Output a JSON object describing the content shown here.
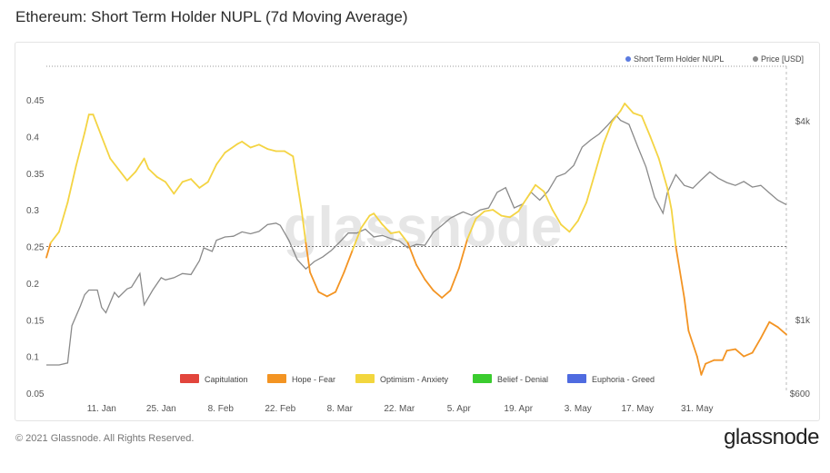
{
  "page": {
    "title": "Ethereum: Short Term Holder NUPL (7d Moving Average)",
    "copyright": "© 2021 Glassnode. All Rights Reserved.",
    "logo": "glassnode",
    "watermark": "glassnode"
  },
  "chart_data": {
    "type": "line",
    "title": "Ethereum: Short Term Holder NUPL (7d Moving Average)",
    "x_labels": [
      "11. Jan",
      "25. Jan",
      "8. Feb",
      "22. Feb",
      "8. Mar",
      "22. Mar",
      "5. Apr",
      "19. Apr",
      "3. May",
      "17. May",
      "31. May"
    ],
    "y_left": {
      "ticks": [
        0.05,
        0.1,
        0.15,
        0.2,
        0.25,
        0.3,
        0.35,
        0.4,
        0.45
      ],
      "range": [
        0.05,
        0.45
      ]
    },
    "y_right": {
      "ticks": [
        "$600",
        "$1k",
        "$4k"
      ],
      "scale": "log"
    },
    "reference_line": 0.25,
    "legend_top": [
      {
        "name": "Short Term Holder NUPL",
        "color": "#5b7be0"
      },
      {
        "name": "Price [USD]",
        "color": "#888888"
      }
    ],
    "legend_bottom": [
      {
        "name": "Capitulation",
        "color": "#e2453c"
      },
      {
        "name": "Hope - Fear",
        "color": "#f39423"
      },
      {
        "name": "Optimism - Anxiety",
        "color": "#f2d63e"
      },
      {
        "name": "Belief - Denial",
        "color": "#3bcc2f"
      },
      {
        "name": "Euphoria - Greed",
        "color": "#4f6be0"
      }
    ],
    "zone_colors": {
      "fear": "#f39423",
      "optimism": "#f4d443"
    },
    "series": [
      {
        "name": "Short Term Holder NUPL",
        "points": [
          [
            "2020-12-29",
            0.235
          ],
          [
            "2020-12-30",
            0.255
          ],
          [
            "2021-01-01",
            0.27
          ],
          [
            "2021-01-03",
            0.31
          ],
          [
            "2021-01-05",
            0.36
          ],
          [
            "2021-01-07",
            0.405
          ],
          [
            "2021-01-08",
            0.43
          ],
          [
            "2021-01-09",
            0.43
          ],
          [
            "2021-01-11",
            0.4
          ],
          [
            "2021-01-13",
            0.37
          ],
          [
            "2021-01-15",
            0.355
          ],
          [
            "2021-01-17",
            0.34
          ],
          [
            "2021-01-19",
            0.352
          ],
          [
            "2021-01-21",
            0.37
          ],
          [
            "2021-01-22",
            0.356
          ],
          [
            "2021-01-24",
            0.345
          ],
          [
            "2021-01-26",
            0.338
          ],
          [
            "2021-01-28",
            0.322
          ],
          [
            "2021-01-30",
            0.338
          ],
          [
            "2021-02-01",
            0.342
          ],
          [
            "2021-02-03",
            0.33
          ],
          [
            "2021-02-05",
            0.338
          ],
          [
            "2021-02-07",
            0.362
          ],
          [
            "2021-02-09",
            0.378
          ],
          [
            "2021-02-12",
            0.39
          ],
          [
            "2021-02-13",
            0.393
          ],
          [
            "2021-02-15",
            0.385
          ],
          [
            "2021-02-17",
            0.389
          ],
          [
            "2021-02-19",
            0.383
          ],
          [
            "2021-02-21",
            0.38
          ],
          [
            "2021-02-23",
            0.38
          ],
          [
            "2021-02-25",
            0.373
          ],
          [
            "2021-02-27",
            0.3
          ],
          [
            "2021-02-28",
            0.255
          ],
          [
            "2021-03-01",
            0.215
          ],
          [
            "2021-03-03",
            0.188
          ],
          [
            "2021-03-05",
            0.182
          ],
          [
            "2021-03-07",
            0.188
          ],
          [
            "2021-03-09",
            0.215
          ],
          [
            "2021-03-11",
            0.245
          ],
          [
            "2021-03-13",
            0.275
          ],
          [
            "2021-03-15",
            0.292
          ],
          [
            "2021-03-16",
            0.295
          ],
          [
            "2021-03-18",
            0.28
          ],
          [
            "2021-03-20",
            0.268
          ],
          [
            "2021-03-22",
            0.27
          ],
          [
            "2021-03-24",
            0.255
          ],
          [
            "2021-03-26",
            0.225
          ],
          [
            "2021-03-28",
            0.205
          ],
          [
            "2021-03-30",
            0.19
          ],
          [
            "2021-04-01",
            0.18
          ],
          [
            "2021-04-03",
            0.19
          ],
          [
            "2021-04-05",
            0.22
          ],
          [
            "2021-04-07",
            0.26
          ],
          [
            "2021-04-09",
            0.288
          ],
          [
            "2021-04-11",
            0.298
          ],
          [
            "2021-04-13",
            0.3
          ],
          [
            "2021-04-15",
            0.292
          ],
          [
            "2021-04-17",
            0.29
          ],
          [
            "2021-04-19",
            0.298
          ],
          [
            "2021-04-21",
            0.316
          ],
          [
            "2021-04-23",
            0.334
          ],
          [
            "2021-04-25",
            0.325
          ],
          [
            "2021-04-27",
            0.3
          ],
          [
            "2021-04-29",
            0.28
          ],
          [
            "2021-05-01",
            0.27
          ],
          [
            "2021-05-03",
            0.285
          ],
          [
            "2021-05-05",
            0.31
          ],
          [
            "2021-05-07",
            0.35
          ],
          [
            "2021-05-09",
            0.39
          ],
          [
            "2021-05-11",
            0.42
          ],
          [
            "2021-05-13",
            0.435
          ],
          [
            "2021-05-14",
            0.445
          ],
          [
            "2021-05-16",
            0.432
          ],
          [
            "2021-05-18",
            0.428
          ],
          [
            "2021-05-20",
            0.4
          ],
          [
            "2021-05-22",
            0.37
          ],
          [
            "2021-05-24",
            0.33
          ],
          [
            "2021-05-25",
            0.3
          ],
          [
            "2021-05-26",
            0.25
          ],
          [
            "2021-05-28",
            0.18
          ],
          [
            "2021-05-29",
            0.135
          ],
          [
            "2021-05-31",
            0.1
          ],
          [
            "2021-06-01",
            0.075
          ],
          [
            "2021-06-02",
            0.09
          ],
          [
            "2021-06-04",
            0.095
          ],
          [
            "2021-06-06",
            0.095
          ],
          [
            "2021-06-07",
            0.108
          ],
          [
            "2021-06-09",
            0.11
          ],
          [
            "2021-06-11",
            0.1
          ],
          [
            "2021-06-13",
            0.105
          ],
          [
            "2021-06-15",
            0.125
          ],
          [
            "2021-06-17",
            0.147
          ],
          [
            "2021-06-19",
            0.14
          ],
          [
            "2021-06-21",
            0.13
          ]
        ]
      },
      {
        "name": "Price [USD]",
        "color": "#8a8a8a",
        "points": [
          [
            "2020-12-29",
            730
          ],
          [
            "2021-01-01",
            730
          ],
          [
            "2021-01-03",
            740
          ],
          [
            "2021-01-04",
            960
          ],
          [
            "2021-01-06",
            1100
          ],
          [
            "2021-01-07",
            1190
          ],
          [
            "2021-01-08",
            1230
          ],
          [
            "2021-01-10",
            1230
          ],
          [
            "2021-01-11",
            1090
          ],
          [
            "2021-01-12",
            1050
          ],
          [
            "2021-01-14",
            1210
          ],
          [
            "2021-01-15",
            1170
          ],
          [
            "2021-01-17",
            1240
          ],
          [
            "2021-01-18",
            1255
          ],
          [
            "2021-01-20",
            1380
          ],
          [
            "2021-01-21",
            1110
          ],
          [
            "2021-01-23",
            1230
          ],
          [
            "2021-01-25",
            1340
          ],
          [
            "2021-01-26",
            1320
          ],
          [
            "2021-01-28",
            1340
          ],
          [
            "2021-01-30",
            1380
          ],
          [
            "2021-02-01",
            1370
          ],
          [
            "2021-02-03",
            1510
          ],
          [
            "2021-02-04",
            1650
          ],
          [
            "2021-02-06",
            1610
          ],
          [
            "2021-02-07",
            1740
          ],
          [
            "2021-02-09",
            1780
          ],
          [
            "2021-02-11",
            1790
          ],
          [
            "2021-02-13",
            1845
          ],
          [
            "2021-02-15",
            1820
          ],
          [
            "2021-02-17",
            1850
          ],
          [
            "2021-02-19",
            1940
          ],
          [
            "2021-02-21",
            1960
          ],
          [
            "2021-02-22",
            1930
          ],
          [
            "2021-02-24",
            1740
          ],
          [
            "2021-02-26",
            1520
          ],
          [
            "2021-02-28",
            1425
          ],
          [
            "2021-03-02",
            1500
          ],
          [
            "2021-03-04",
            1550
          ],
          [
            "2021-03-06",
            1620
          ],
          [
            "2021-03-08",
            1720
          ],
          [
            "2021-03-10",
            1830
          ],
          [
            "2021-03-12",
            1830
          ],
          [
            "2021-03-14",
            1880
          ],
          [
            "2021-03-16",
            1780
          ],
          [
            "2021-03-18",
            1800
          ],
          [
            "2021-03-20",
            1760
          ],
          [
            "2021-03-22",
            1730
          ],
          [
            "2021-03-24",
            1650
          ],
          [
            "2021-03-26",
            1690
          ],
          [
            "2021-03-28",
            1680
          ],
          [
            "2021-03-30",
            1840
          ],
          [
            "2021-04-01",
            1930
          ],
          [
            "2021-04-03",
            2030
          ],
          [
            "2021-04-05",
            2090
          ],
          [
            "2021-04-06",
            2120
          ],
          [
            "2021-04-08",
            2070
          ],
          [
            "2021-04-10",
            2150
          ],
          [
            "2021-04-12",
            2180
          ],
          [
            "2021-04-14",
            2430
          ],
          [
            "2021-04-16",
            2510
          ],
          [
            "2021-04-18",
            2180
          ],
          [
            "2021-04-20",
            2240
          ],
          [
            "2021-04-22",
            2430
          ],
          [
            "2021-04-24",
            2300
          ],
          [
            "2021-04-26",
            2450
          ],
          [
            "2021-04-28",
            2710
          ],
          [
            "2021-04-30",
            2770
          ],
          [
            "2021-05-02",
            2930
          ],
          [
            "2021-05-04",
            3330
          ],
          [
            "2021-05-06",
            3500
          ],
          [
            "2021-05-08",
            3650
          ],
          [
            "2021-05-10",
            3880
          ],
          [
            "2021-05-12",
            4150
          ],
          [
            "2021-05-13",
            4010
          ],
          [
            "2021-05-15",
            3900
          ],
          [
            "2021-05-17",
            3350
          ],
          [
            "2021-05-19",
            2900
          ],
          [
            "2021-05-21",
            2350
          ],
          [
            "2021-05-23",
            2100
          ],
          [
            "2021-05-24",
            2420
          ],
          [
            "2021-05-26",
            2750
          ],
          [
            "2021-05-28",
            2550
          ],
          [
            "2021-05-30",
            2500
          ],
          [
            "2021-06-01",
            2650
          ],
          [
            "2021-06-03",
            2800
          ],
          [
            "2021-06-05",
            2680
          ],
          [
            "2021-06-07",
            2600
          ],
          [
            "2021-06-09",
            2550
          ],
          [
            "2021-06-11",
            2620
          ],
          [
            "2021-06-13",
            2520
          ],
          [
            "2021-06-15",
            2550
          ],
          [
            "2021-06-17",
            2420
          ],
          [
            "2021-06-19",
            2300
          ],
          [
            "2021-06-21",
            2230
          ]
        ]
      }
    ]
  }
}
